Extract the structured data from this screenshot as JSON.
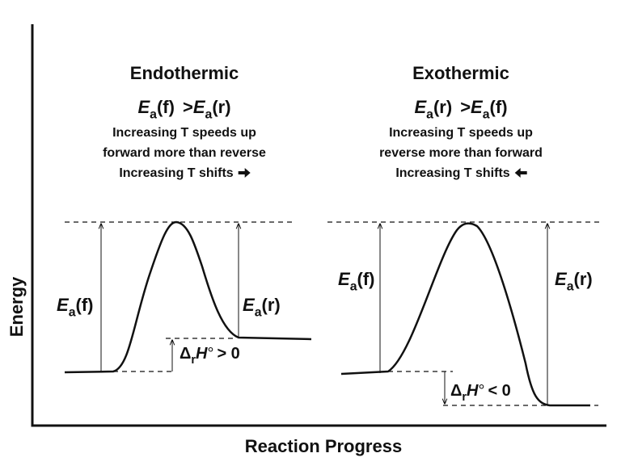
{
  "axes": {
    "y_label": "Energy",
    "x_label": "Reaction Progress"
  },
  "panels": [
    {
      "title": "Endothermic",
      "comparison": {
        "left": {
          "symbol": "E",
          "sub": "a",
          "arg": "(f)"
        },
        "operator": ">",
        "right": {
          "symbol": "E",
          "sub": "a",
          "arg": "(r)"
        }
      },
      "notes": [
        "Increasing T speeds up",
        "forward more than reverse",
        "Increasing T shifts"
      ],
      "forward_label": {
        "symbol": "E",
        "sub": "a",
        "arg": "(f)"
      },
      "reverse_label": {
        "symbol": "E",
        "sub": "a",
        "arg": "(r)"
      },
      "delta_label": {
        "symbol": "Δ",
        "sub": "r",
        "var": "H",
        "sup": "°",
        "relation": "> 0"
      }
    },
    {
      "title": "Exothermic",
      "comparison": {
        "left": {
          "symbol": "E",
          "sub": "a",
          "arg": "(r)"
        },
        "operator": ">",
        "right": {
          "symbol": "E",
          "sub": "a",
          "arg": "(f)"
        }
      },
      "notes": [
        "Increasing T speeds up",
        "reverse more than forward",
        "Increasing T shifts"
      ],
      "forward_label": {
        "symbol": "E",
        "sub": "a",
        "arg": "(f)"
      },
      "reverse_label": {
        "symbol": "E",
        "sub": "a",
        "arg": "(r)"
      },
      "delta_label": {
        "symbol": "Δ",
        "sub": "r",
        "var": "H",
        "sup": "°",
        "relation": "< 0"
      }
    }
  ]
}
